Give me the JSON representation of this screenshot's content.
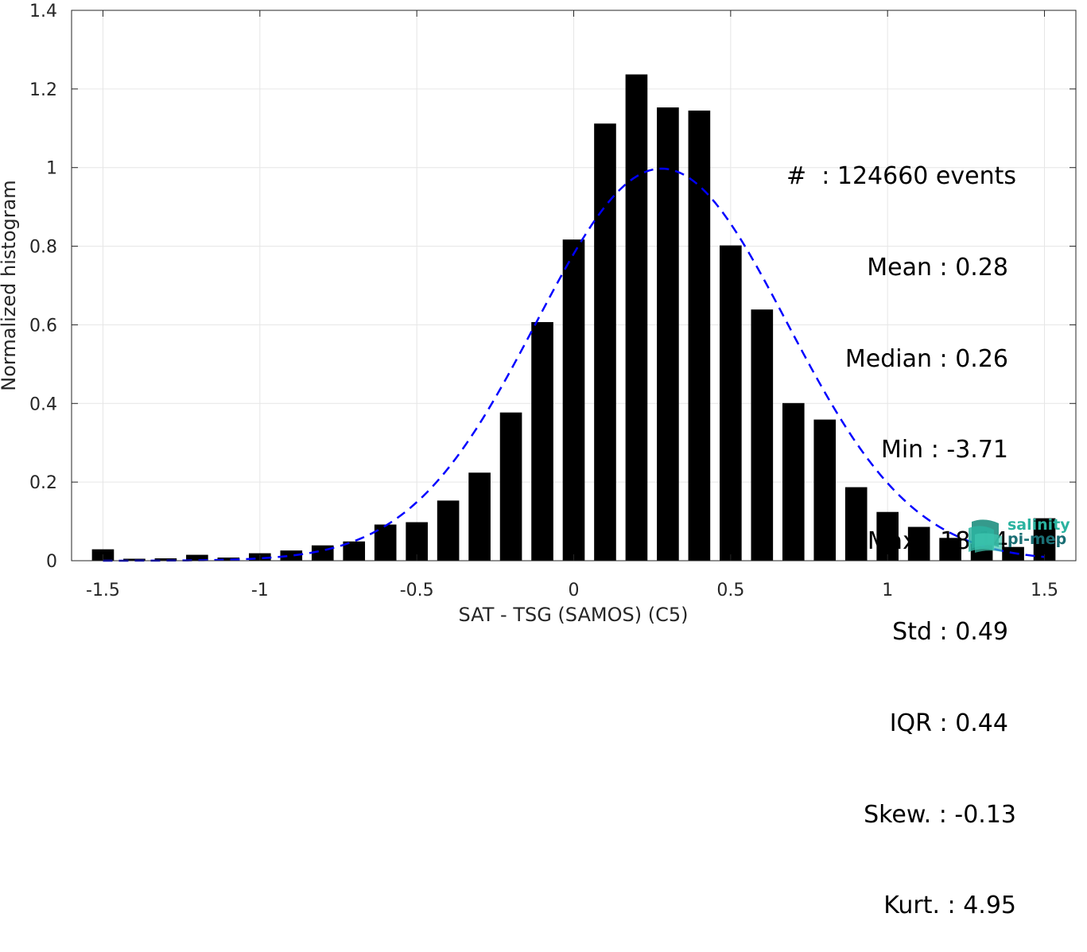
{
  "chart_data": {
    "type": "bar",
    "xlabel": "SAT - TSG (SAMOS) (C5)",
    "ylabel": "Normalized histogram",
    "xlim": [
      -1.6,
      1.6
    ],
    "ylim": [
      0,
      1.4
    ],
    "xticks": [
      "-1.5",
      "-1",
      "-0.5",
      "0",
      "0.5",
      "1",
      "1.5"
    ],
    "yticks": [
      "0",
      "0.2",
      "0.4",
      "0.6",
      "0.8",
      "1",
      "1.2",
      "1.4"
    ],
    "grid": true,
    "bar_color": "#000000",
    "fit_color": "#0000ff",
    "x": [
      -1.5,
      -1.4,
      -1.3,
      -1.2,
      -1.1,
      -1.0,
      -0.9,
      -0.8,
      -0.7,
      -0.6,
      -0.5,
      -0.4,
      -0.3,
      -0.2,
      -0.1,
      0.0,
      0.1,
      0.2,
      0.3,
      0.4,
      0.5,
      0.6,
      0.7,
      0.8,
      0.9,
      1.0,
      1.1,
      1.2,
      1.3,
      1.4,
      1.5
    ],
    "values": [
      0.029,
      0.005,
      0.006,
      0.015,
      0.008,
      0.019,
      0.026,
      0.039,
      0.049,
      0.092,
      0.098,
      0.153,
      0.224,
      0.377,
      0.607,
      0.817,
      1.112,
      1.237,
      1.153,
      1.145,
      0.802,
      0.639,
      0.401,
      0.359,
      0.187,
      0.124,
      0.086,
      0.058,
      0.043,
      0.035,
      0.108
    ],
    "fit_curve": {
      "type": "normal",
      "mean": 0.28,
      "std": 0.4,
      "style": "dashed"
    }
  },
  "stats": {
    "events": "#  : 124660 events",
    "mean": "Mean : 0.28",
    "median": "Median : 0.26",
    "min": "Min : -3.71",
    "max": "Max : 18.14",
    "std": "Std : 0.49",
    "iqr": "IQR : 0.44",
    "skew": "Skew. : -0.13",
    "kurt": "Kurt. : 4.95"
  },
  "logo": {
    "line1": "salinity",
    "line2": "pi-mep"
  }
}
